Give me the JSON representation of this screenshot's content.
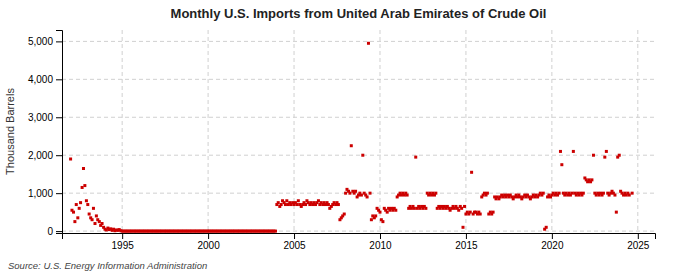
{
  "chart_data": {
    "type": "scatter",
    "title": "Monthly U.S. Imports from United Arab Emirates of Crude Oil",
    "y_label": "Thousand Barrels",
    "annotations": [
      "Source: U.S. Energy Information Administration"
    ],
    "color": "#cc0000",
    "marker": "square",
    "grid": true,
    "xlim": [
      1991.5,
      2026.0
    ],
    "ylim": [
      -50,
      5300
    ],
    "xticks": [
      1995,
      2000,
      2005,
      2010,
      2015,
      2020,
      2025
    ],
    "yticks": [
      0,
      {
        "value": 1000,
        "label": "1,000"
      },
      {
        "value": 2000,
        "label": "2,000"
      },
      {
        "value": 3000,
        "label": "3,000"
      },
      {
        "value": 4000,
        "label": "4,000"
      },
      {
        "value": 5000,
        "label": "5,000"
      }
    ],
    "x": [
      1992.0,
      1992.08,
      1992.17,
      1992.25,
      1992.33,
      1992.42,
      1992.5,
      1992.58,
      1992.67,
      1992.75,
      1992.83,
      1992.92,
      1993.0,
      1993.08,
      1993.17,
      1993.25,
      1993.33,
      1993.42,
      1993.5,
      1993.58,
      1993.67,
      1993.75,
      1993.83,
      1993.92,
      1994.0,
      1994.08,
      1994.17,
      1994.25,
      1994.33,
      1994.42,
      1994.5,
      1994.58,
      1994.67,
      1994.75,
      1994.83,
      1994.92,
      1995.0,
      1995.08,
      1995.17,
      1995.25,
      1995.33,
      1995.42,
      1995.5,
      1995.58,
      1995.67,
      1995.75,
      1995.83,
      1995.92,
      1996.0,
      1996.08,
      1996.17,
      1996.25,
      1996.33,
      1996.42,
      1996.5,
      1996.58,
      1996.67,
      1996.75,
      1996.83,
      1996.92,
      1997.0,
      1997.08,
      1997.17,
      1997.25,
      1997.33,
      1997.42,
      1997.5,
      1997.58,
      1997.67,
      1997.75,
      1997.83,
      1997.92,
      1998.0,
      1998.08,
      1998.17,
      1998.25,
      1998.33,
      1998.42,
      1998.5,
      1998.58,
      1998.67,
      1998.75,
      1998.83,
      1998.92,
      1999.0,
      1999.08,
      1999.17,
      1999.25,
      1999.33,
      1999.42,
      1999.5,
      1999.58,
      1999.67,
      1999.75,
      1999.83,
      1999.92,
      2000.0,
      2000.08,
      2000.17,
      2000.25,
      2000.33,
      2000.42,
      2000.5,
      2000.58,
      2000.67,
      2000.75,
      2000.83,
      2000.92,
      2001.0,
      2001.08,
      2001.17,
      2001.25,
      2001.33,
      2001.42,
      2001.5,
      2001.58,
      2001.67,
      2001.75,
      2001.83,
      2001.92,
      2002.0,
      2002.08,
      2002.17,
      2002.25,
      2002.33,
      2002.42,
      2002.5,
      2002.58,
      2002.67,
      2002.75,
      2002.83,
      2002.92,
      2003.0,
      2003.08,
      2003.17,
      2003.25,
      2003.33,
      2003.42,
      2003.5,
      2003.58,
      2003.67,
      2003.75,
      2003.83,
      2003.92,
      2004.0,
      2004.08,
      2004.17,
      2004.25,
      2004.33,
      2004.42,
      2004.5,
      2004.58,
      2004.67,
      2004.75,
      2004.83,
      2004.92,
      2005.0,
      2005.08,
      2005.17,
      2005.25,
      2005.33,
      2005.42,
      2005.5,
      2005.58,
      2005.67,
      2005.75,
      2005.83,
      2005.92,
      2006.0,
      2006.08,
      2006.17,
      2006.25,
      2006.33,
      2006.42,
      2006.5,
      2006.58,
      2006.67,
      2006.75,
      2006.83,
      2006.92,
      2007.0,
      2007.08,
      2007.17,
      2007.25,
      2007.33,
      2007.42,
      2007.5,
      2007.58,
      2007.67,
      2007.75,
      2007.83,
      2007.92,
      2008.0,
      2008.08,
      2008.17,
      2008.25,
      2008.33,
      2008.42,
      2008.5,
      2008.58,
      2008.67,
      2008.75,
      2008.83,
      2008.92,
      2009.0,
      2009.08,
      2009.17,
      2009.25,
      2009.33,
      2009.42,
      2009.5,
      2009.58,
      2009.67,
      2009.75,
      2009.83,
      2009.92,
      2010.0,
      2010.08,
      2010.17,
      2010.25,
      2010.33,
      2010.42,
      2010.5,
      2010.58,
      2010.67,
      2010.75,
      2010.83,
      2010.92,
      2011.0,
      2011.08,
      2011.17,
      2011.25,
      2011.33,
      2011.42,
      2011.5,
      2011.58,
      2011.67,
      2011.75,
      2011.83,
      2011.92,
      2012.0,
      2012.08,
      2012.17,
      2012.25,
      2012.33,
      2012.42,
      2012.5,
      2012.58,
      2012.67,
      2012.75,
      2012.83,
      2012.92,
      2013.0,
      2013.08,
      2013.17,
      2013.25,
      2013.33,
      2013.42,
      2013.5,
      2013.58,
      2013.67,
      2013.75,
      2013.83,
      2013.92,
      2014.0,
      2014.08,
      2014.17,
      2014.25,
      2014.33,
      2014.42,
      2014.5,
      2014.58,
      2014.67,
      2014.75,
      2014.83,
      2014.92,
      2015.0,
      2015.08,
      2015.17,
      2015.25,
      2015.33,
      2015.42,
      2015.5,
      2015.58,
      2015.67,
      2015.75,
      2015.83,
      2015.92,
      2016.0,
      2016.08,
      2016.17,
      2016.25,
      2016.33,
      2016.42,
      2016.5,
      2016.58,
      2016.67,
      2016.75,
      2016.83,
      2016.92,
      2017.0,
      2017.08,
      2017.17,
      2017.25,
      2017.33,
      2017.42,
      2017.5,
      2017.58,
      2017.67,
      2017.75,
      2017.83,
      2017.92,
      2018.0,
      2018.08,
      2018.17,
      2018.25,
      2018.33,
      2018.42,
      2018.5,
      2018.58,
      2018.67,
      2018.75,
      2018.83,
      2018.92,
      2019.0,
      2019.08,
      2019.17,
      2019.25,
      2019.33,
      2019.42,
      2019.5,
      2019.58,
      2019.67,
      2019.75,
      2019.83,
      2019.92,
      2020.0,
      2020.08,
      2020.17,
      2020.25,
      2020.33,
      2020.42,
      2020.5,
      2020.58,
      2020.67,
      2020.75,
      2020.83,
      2020.92,
      2021.0,
      2021.08,
      2021.17,
      2021.25,
      2021.33,
      2021.42,
      2021.5,
      2021.58,
      2021.67,
      2021.75,
      2021.83,
      2021.92,
      2022.0,
      2022.08,
      2022.17,
      2022.25,
      2022.33,
      2022.42,
      2022.5,
      2022.58,
      2022.67,
      2022.75,
      2022.83,
      2022.92,
      2023.0,
      2023.08,
      2023.17,
      2023.25,
      2023.33,
      2023.42,
      2023.5,
      2023.58,
      2023.67,
      2023.75,
      2023.83,
      2023.92,
      2024.0,
      2024.08,
      2024.17,
      2024.25,
      2024.33,
      2024.42,
      2024.5,
      2024.67
    ],
    "values": [
      1900,
      550,
      500,
      250,
      700,
      350,
      600,
      750,
      1150,
      1650,
      1200,
      800,
      700,
      450,
      350,
      300,
      600,
      200,
      400,
      300,
      250,
      150,
      200,
      100,
      50,
      30,
      80,
      40,
      60,
      20,
      50,
      10,
      30,
      20,
      40,
      10,
      0,
      0,
      0,
      0,
      0,
      0,
      0,
      0,
      0,
      0,
      0,
      0,
      0,
      0,
      0,
      0,
      0,
      0,
      0,
      0,
      0,
      0,
      0,
      0,
      0,
      0,
      0,
      0,
      0,
      0,
      0,
      0,
      0,
      0,
      0,
      0,
      0,
      0,
      0,
      0,
      0,
      0,
      0,
      0,
      0,
      0,
      0,
      0,
      0,
      0,
      0,
      0,
      0,
      0,
      0,
      0,
      0,
      0,
      0,
      0,
      0,
      0,
      0,
      0,
      0,
      0,
      0,
      0,
      0,
      0,
      0,
      0,
      0,
      0,
      0,
      0,
      0,
      0,
      0,
      0,
      0,
      0,
      0,
      0,
      0,
      0,
      0,
      0,
      0,
      0,
      0,
      0,
      0,
      0,
      0,
      0,
      0,
      0,
      0,
      0,
      0,
      0,
      0,
      0,
      0,
      0,
      0,
      0,
      700,
      750,
      650,
      700,
      800,
      750,
      700,
      800,
      700,
      750,
      700,
      750,
      700,
      750,
      700,
      800,
      700,
      650,
      700,
      750,
      700,
      800,
      750,
      700,
      750,
      700,
      750,
      700,
      750,
      800,
      700,
      750,
      700,
      750,
      700,
      750,
      700,
      600,
      650,
      700,
      750,
      700,
      750,
      700,
      300,
      350,
      400,
      450,
      1000,
      1100,
      1050,
      1000,
      2250,
      1050,
      1000,
      1050,
      900,
      950,
      1000,
      950,
      2000,
      1000,
      950,
      900,
      4950,
      1000,
      300,
      400,
      350,
      400,
      600,
      550,
      500,
      300,
      250,
      600,
      550,
      500,
      600,
      550,
      600,
      550,
      600,
      550,
      900,
      950,
      1000,
      950,
      1000,
      950,
      1000,
      950,
      600,
      650,
      600,
      650,
      600,
      1950,
      600,
      650,
      600,
      650,
      600,
      650,
      600,
      1000,
      950,
      1000,
      950,
      1000,
      950,
      1000,
      600,
      650,
      600,
      650,
      600,
      650,
      600,
      650,
      600,
      550,
      600,
      650,
      600,
      650,
      600,
      550,
      650,
      600,
      100,
      650,
      450,
      500,
      450,
      500,
      1550,
      450,
      500,
      500,
      450,
      500,
      450,
      900,
      950,
      1000,
      950,
      1000,
      450,
      500,
      450,
      500,
      900,
      850,
      900,
      850,
      900,
      950,
      900,
      950,
      900,
      950,
      900,
      950,
      900,
      850,
      900,
      950,
      900,
      950,
      900,
      850,
      900,
      950,
      900,
      950,
      900,
      850,
      900,
      950,
      900,
      950,
      900,
      950,
      1000,
      950,
      1000,
      50,
      100,
      900,
      950,
      900,
      950,
      1000,
      950,
      1000,
      950,
      1000,
      2100,
      1750,
      1000,
      950,
      1000,
      950,
      1000,
      950,
      1000,
      2100,
      1000,
      950,
      1000,
      950,
      1000,
      950,
      1000,
      1400,
      1350,
      1300,
      1350,
      1300,
      1350,
      2000,
      1000,
      950,
      1000,
      950,
      1000,
      950,
      1000,
      1950,
      2100,
      1000,
      950,
      1000,
      1050,
      1000,
      950,
      500,
      1950,
      2000,
      1050,
      1000,
      950,
      1000,
      950,
      1000,
      950,
      1000
    ]
  }
}
